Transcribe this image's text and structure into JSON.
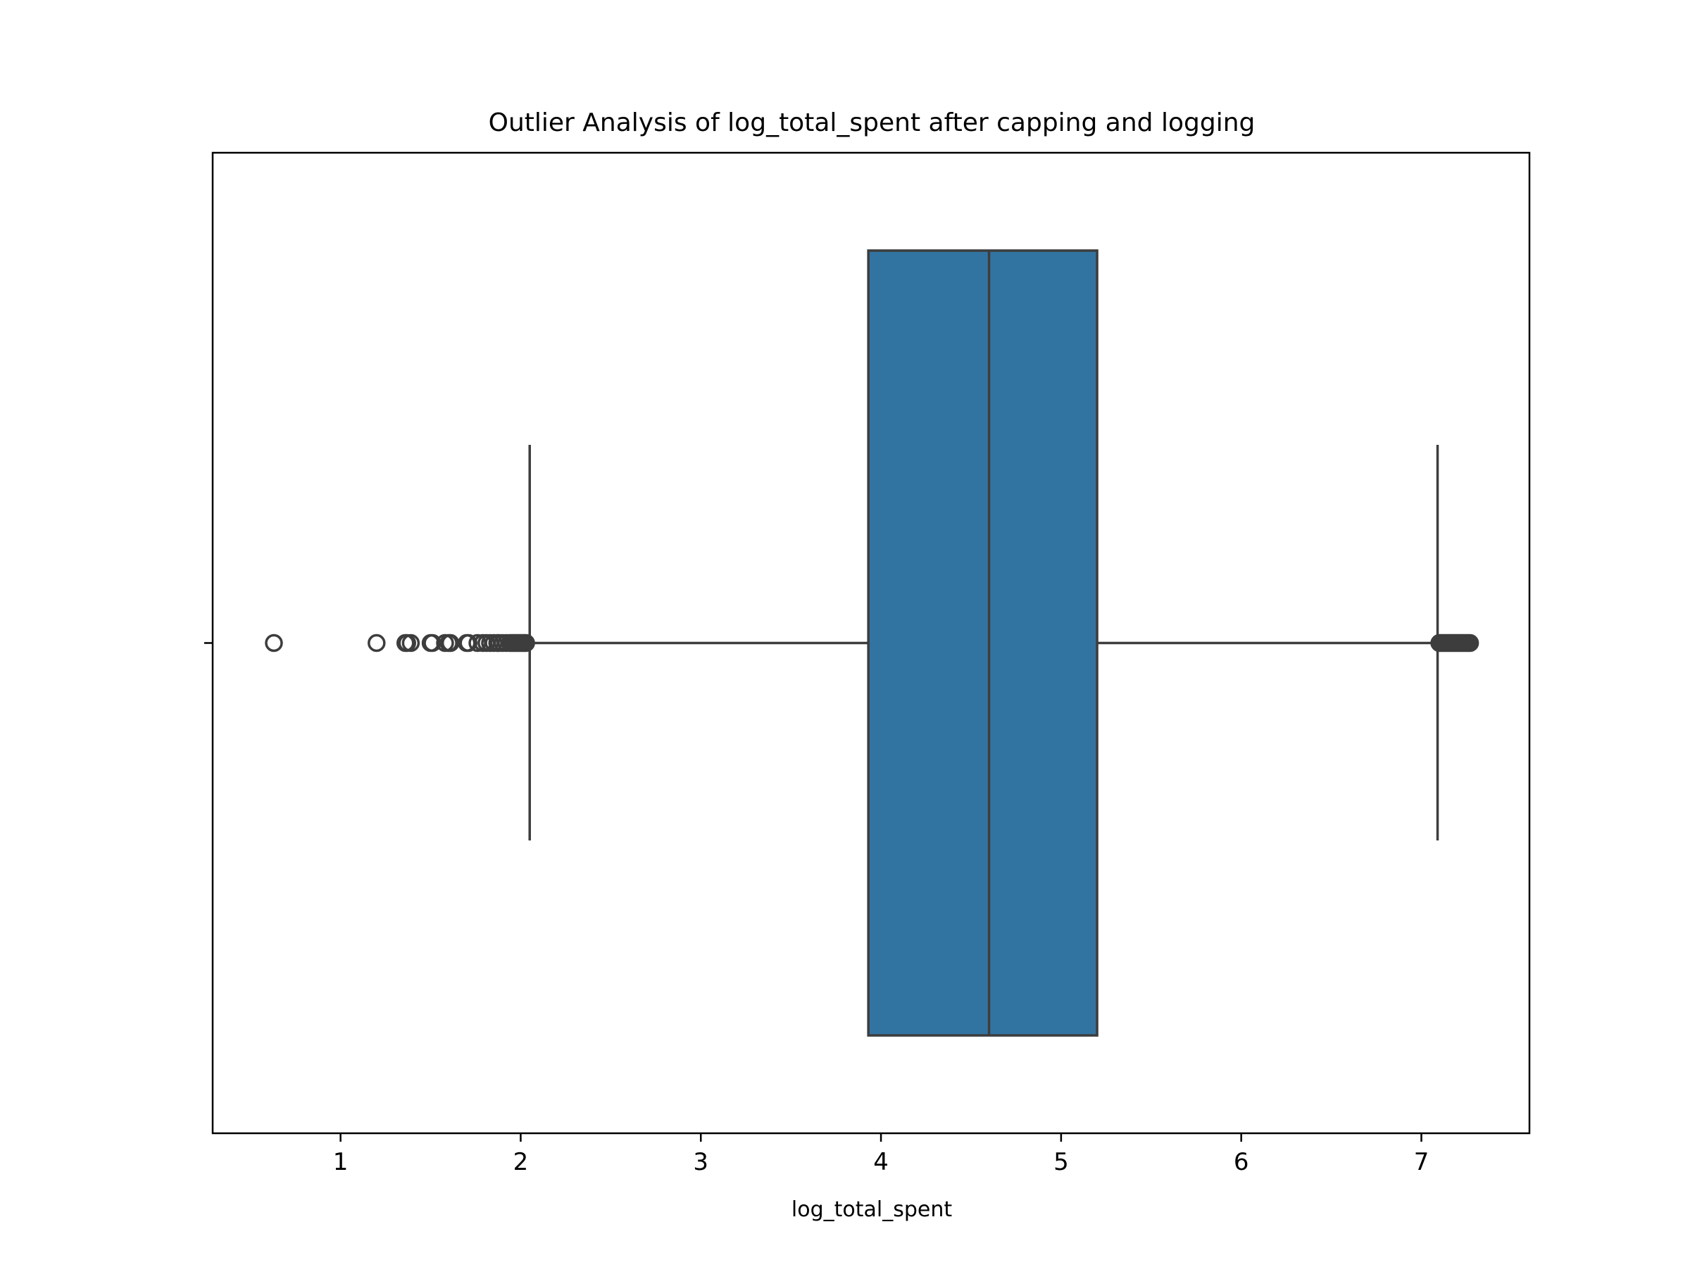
{
  "chart_data": {
    "type": "box",
    "orientation": "horizontal",
    "title": "Outlier Analysis of log_total_spent after capping and logging",
    "xlabel": "log_total_spent",
    "ylabel": "",
    "xlim": [
      0.29,
      7.6
    ],
    "xticks": [
      1,
      2,
      3,
      4,
      5,
      6,
      7
    ],
    "xtick_labels": [
      "1",
      "2",
      "3",
      "4",
      "5",
      "6",
      "7"
    ],
    "grid": false,
    "box": {
      "q1": 3.93,
      "median": 4.6,
      "q3": 5.2,
      "whisker_low": 2.05,
      "whisker_high": 7.09,
      "fill_color": "#3274a1",
      "line_color": "#3d3d3d"
    },
    "outliers": [
      0.63,
      1.2,
      1.36,
      1.37,
      1.39,
      1.5,
      1.51,
      1.58,
      1.6,
      1.61,
      1.7,
      1.71,
      1.76,
      1.79,
      1.81,
      1.83,
      1.85,
      1.87,
      1.88,
      1.9,
      1.92,
      1.94,
      1.95,
      1.96,
      1.97,
      1.98,
      1.99,
      2.0,
      2.01,
      2.02,
      2.03,
      7.1,
      7.11,
      7.12,
      7.13,
      7.14,
      7.15,
      7.16,
      7.17,
      7.18,
      7.19,
      7.2,
      7.21,
      7.22,
      7.23,
      7.24,
      7.25,
      7.26,
      7.27
    ]
  }
}
